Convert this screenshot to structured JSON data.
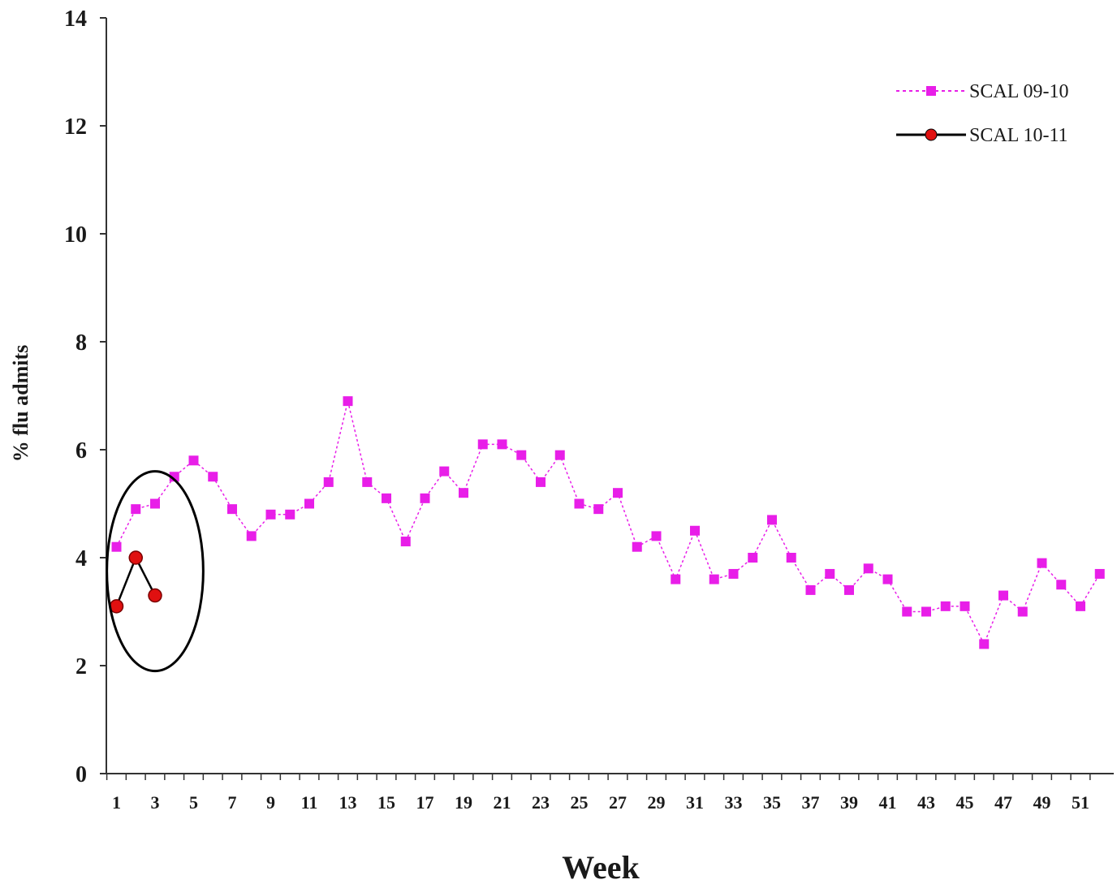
{
  "chart_data": {
    "type": "line",
    "title": "",
    "xlabel": "Week",
    "ylabel": "% flu admits",
    "ylim": [
      0,
      14
    ],
    "yticks": [
      0,
      2,
      4,
      6,
      8,
      10,
      12,
      14
    ],
    "xlim": [
      1,
      52
    ],
    "xtick_labels": [
      1,
      3,
      5,
      7,
      9,
      11,
      13,
      15,
      17,
      19,
      21,
      23,
      25,
      27,
      29,
      31,
      33,
      35,
      37,
      39,
      41,
      43,
      45,
      47,
      49,
      51
    ],
    "grid": false,
    "legend_position": "top-right",
    "series": [
      {
        "name": "SCAL 09-10",
        "color": "#e81ee8",
        "line_style": "dotted",
        "marker": "square",
        "x": [
          1,
          2,
          3,
          4,
          5,
          6,
          7,
          8,
          9,
          10,
          11,
          12,
          13,
          14,
          15,
          16,
          17,
          18,
          19,
          20,
          21,
          22,
          23,
          24,
          25,
          26,
          27,
          28,
          29,
          30,
          31,
          32,
          33,
          34,
          35,
          36,
          37,
          38,
          39,
          40,
          41,
          42,
          43,
          44,
          45,
          46,
          47,
          48,
          49,
          50,
          51,
          52
        ],
        "values": [
          4.2,
          4.9,
          5.0,
          5.5,
          5.8,
          5.5,
          4.9,
          4.4,
          4.8,
          4.8,
          5.0,
          5.4,
          6.9,
          5.4,
          5.1,
          4.3,
          5.1,
          5.6,
          5.2,
          6.1,
          6.1,
          5.9,
          5.4,
          5.9,
          5.0,
          4.9,
          5.2,
          4.2,
          4.4,
          3.6,
          4.5,
          3.6,
          3.7,
          4.0,
          4.7,
          4.0,
          3.4,
          3.7,
          3.4,
          3.8,
          3.6,
          3.0,
          3.0,
          3.1,
          3.1,
          2.4,
          3.3,
          3.0,
          3.9,
          3.5,
          3.1,
          3.7
        ]
      },
      {
        "name": "SCAL 10-11",
        "color": "#e01010",
        "line_color": "#000000",
        "line_style": "solid",
        "marker": "circle",
        "x": [
          1,
          2,
          3
        ],
        "values": [
          3.1,
          4.0,
          3.3
        ]
      }
    ],
    "annotations": [
      {
        "type": "ellipse-highlight",
        "around_series": "SCAL 10-11",
        "x_range": [
          0.5,
          5.5
        ],
        "y_range": [
          1.9,
          5.6
        ]
      }
    ]
  }
}
